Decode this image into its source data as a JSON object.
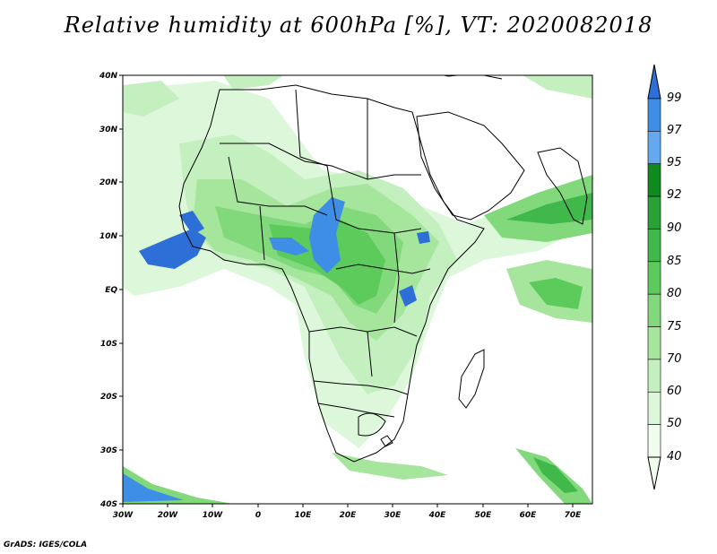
{
  "title": "Relative humidity at 600hPa [%], VT: 2020082018",
  "footer": "GrADS: IGES/COLA",
  "lat_labels": [
    "40N",
    "30N",
    "20N",
    "10N",
    "EQ",
    "10S",
    "20S",
    "30S",
    "40S"
  ],
  "lon_labels": [
    "30W",
    "20W",
    "10W",
    "0",
    "10E",
    "20E",
    "30E",
    "40E",
    "50E",
    "60E",
    "70E"
  ],
  "colorbar": {
    "labels": [
      "99",
      "97",
      "95",
      "92",
      "90",
      "85",
      "80",
      "75",
      "70",
      "60",
      "50",
      "40"
    ],
    "colors": [
      "#2d6fd6",
      "#3e8ee6",
      "#64a8ef",
      "#0f8a1e",
      "#2aa136",
      "#40b84a",
      "#5ccb5c",
      "#82d97c",
      "#a6e59c",
      "#c4efbe",
      "#ddf7da",
      "#f0fcee"
    ]
  }
}
